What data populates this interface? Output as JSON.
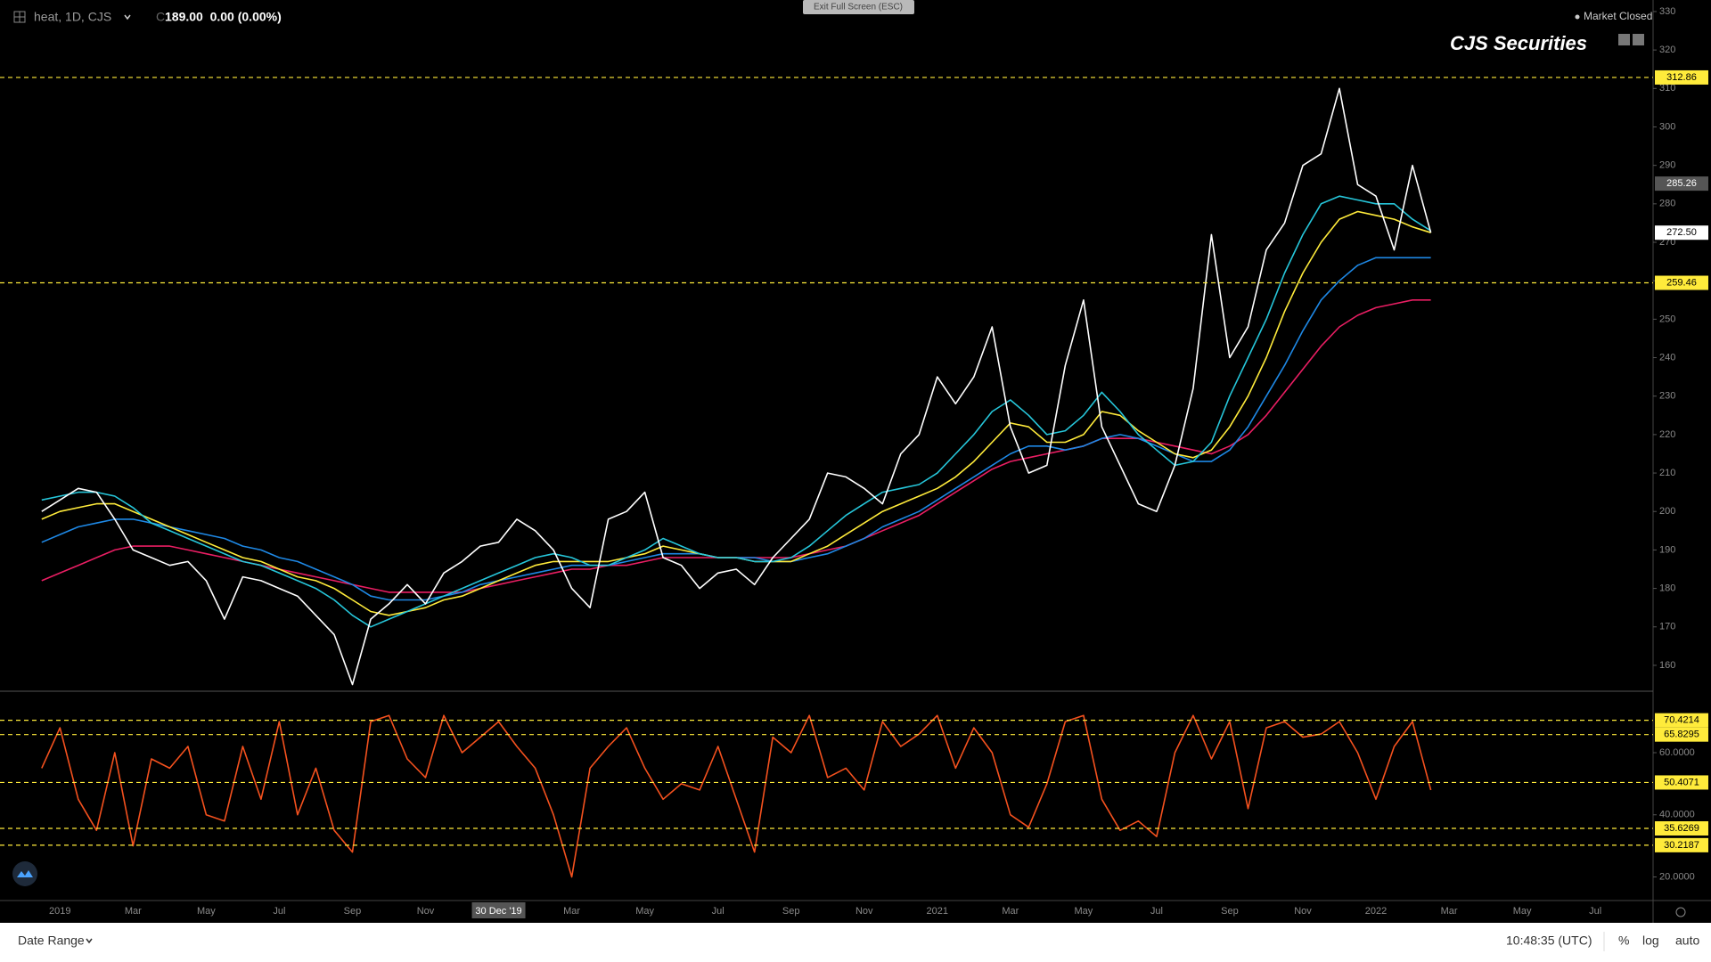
{
  "ui": {
    "symbol": "heat, 1D, CJS",
    "ohlc_prefix": "C",
    "ohlc": "189.00  0.00 (0.00%)",
    "exit_button": "Exit Full Screen (ESC)",
    "status": "Market Closed",
    "date_range": "Date Range",
    "clock": "10:48:35 (UTC)",
    "percent": "%",
    "log": "log",
    "auto": "auto"
  },
  "chart_data": [
    {
      "type": "line",
      "title": "CJS Securities",
      "categories": [
        null,
        "2019",
        null,
        null,
        null,
        "Mar",
        null,
        null,
        null,
        "May",
        null,
        null,
        null,
        "Jul",
        null,
        null,
        null,
        "Sep",
        null,
        null,
        null,
        "Nov",
        null,
        null,
        null,
        "30 Dec '19",
        null,
        null,
        null,
        "Mar",
        null,
        null,
        null,
        "May",
        null,
        null,
        null,
        "Jul",
        null,
        null,
        null,
        "Sep",
        null,
        null,
        null,
        "Nov",
        null,
        null,
        null,
        "2021",
        null,
        null,
        null,
        "Mar",
        null,
        null,
        null,
        "May",
        null,
        null,
        null,
        "Jul",
        null,
        null,
        null,
        "Sep",
        null,
        null,
        null,
        "Nov",
        null,
        null,
        null,
        "2022",
        null,
        null,
        null,
        "Mar",
        null,
        null,
        null,
        "May",
        null,
        null,
        null,
        "Jul",
        null,
        null,
        null
      ],
      "series": [
        {
          "color": "#e91e63",
          "values": [
            182,
            184,
            186,
            188,
            190,
            191,
            191,
            191,
            190,
            189,
            188,
            187,
            186,
            185,
            184,
            183,
            182,
            181,
            180,
            179,
            179,
            179,
            179,
            179,
            180,
            181,
            182,
            183,
            184,
            185,
            185,
            186,
            186,
            187,
            188,
            188,
            188,
            188,
            188,
            188,
            188,
            188,
            189,
            190,
            191,
            193,
            195,
            197,
            199,
            202,
            205,
            208,
            211,
            213,
            214,
            215,
            216,
            217,
            219,
            219,
            219,
            218,
            217,
            216,
            215,
            217,
            220,
            225,
            231,
            237,
            243,
            248,
            251,
            253,
            254,
            255,
            255,
            null,
            null,
            null,
            null,
            null,
            null,
            null,
            null,
            null,
            null,
            null,
            null
          ]
        },
        {
          "color": "#1e88e5",
          "values": [
            192,
            194,
            196,
            197,
            198,
            198,
            197,
            196,
            195,
            194,
            193,
            191,
            190,
            188,
            187,
            185,
            183,
            181,
            178,
            177,
            177,
            177,
            178,
            179,
            181,
            182,
            183,
            184,
            185,
            186,
            186,
            186,
            187,
            188,
            189,
            189,
            189,
            188,
            188,
            188,
            187,
            187,
            188,
            189,
            191,
            193,
            196,
            198,
            200,
            203,
            206,
            209,
            212,
            215,
            217,
            217,
            216,
            217,
            219,
            220,
            219,
            217,
            215,
            213,
            213,
            216,
            222,
            230,
            238,
            247,
            255,
            260,
            264,
            266,
            266,
            266,
            266,
            null,
            null,
            null,
            null,
            null,
            null,
            null,
            null,
            null,
            null,
            null,
            null
          ]
        },
        {
          "color": "#ffeb3b",
          "values": [
            198,
            200,
            201,
            202,
            202,
            200,
            198,
            196,
            194,
            192,
            190,
            188,
            187,
            185,
            183,
            182,
            180,
            177,
            174,
            173,
            174,
            175,
            177,
            178,
            180,
            182,
            184,
            186,
            187,
            187,
            187,
            187,
            188,
            189,
            191,
            190,
            189,
            188,
            188,
            187,
            187,
            187,
            189,
            191,
            194,
            197,
            200,
            202,
            204,
            206,
            209,
            213,
            218,
            223,
            222,
            218,
            218,
            220,
            226,
            225,
            221,
            218,
            215,
            214,
            216,
            222,
            230,
            240,
            252,
            262,
            270,
            276,
            278,
            277,
            276,
            274,
            272.5,
            null,
            null,
            null,
            null,
            null,
            null,
            null,
            null,
            null,
            null,
            null,
            null
          ]
        },
        {
          "color": "#26c6da",
          "values": [
            203,
            204,
            205,
            205,
            204,
            201,
            197,
            195,
            193,
            191,
            189,
            187,
            186,
            184,
            182,
            180,
            177,
            173,
            170,
            172,
            174,
            176,
            178,
            180,
            182,
            184,
            186,
            188,
            189,
            188,
            186,
            186,
            188,
            190,
            193,
            191,
            189,
            188,
            188,
            187,
            187,
            188,
            191,
            195,
            199,
            202,
            205,
            206,
            207,
            210,
            215,
            220,
            226,
            229,
            225,
            220,
            221,
            225,
            231,
            226,
            220,
            216,
            212,
            213,
            218,
            230,
            240,
            250,
            262,
            272,
            280,
            282,
            281,
            280,
            280,
            276,
            273,
            null,
            null,
            null,
            null,
            null,
            null,
            null,
            null,
            null,
            null,
            null,
            null
          ]
        },
        {
          "color": "#ffffff",
          "values": [
            200,
            203,
            206,
            205,
            198,
            190,
            188,
            186,
            187,
            182,
            172,
            183,
            182,
            180,
            178,
            173,
            168,
            155,
            172,
            176,
            181,
            176,
            184,
            187,
            191,
            192,
            198,
            195,
            190,
            180,
            175,
            198,
            200,
            205,
            188,
            186,
            180,
            184,
            185,
            181,
            188,
            193,
            198,
            210,
            209,
            206,
            202,
            215,
            220,
            235,
            228,
            235,
            248,
            222,
            210,
            212,
            238,
            255,
            222,
            212,
            202,
            200,
            212,
            232,
            272,
            240,
            248,
            268,
            275,
            290,
            293,
            310,
            285,
            282,
            268,
            290,
            272.5,
            null,
            null,
            null,
            null,
            null,
            null,
            null,
            null,
            null,
            null,
            null,
            null
          ]
        }
      ],
      "ylim": [
        153.5,
        333
      ],
      "yticks": [
        160,
        170,
        180,
        190,
        200,
        210,
        220,
        230,
        240,
        250,
        260,
        270,
        280,
        290,
        300,
        310,
        320,
        330
      ],
      "levels": [
        {
          "value": 312.86,
          "color": "#ffeb3b",
          "label_color": "#000000",
          "line": true
        },
        {
          "value": 285.26,
          "color": "#555555",
          "label_color": "#ffffff",
          "line": false
        },
        {
          "value": 272.5,
          "label": "272.50",
          "color": "#ffffff",
          "label_color": "#000000",
          "line": false
        },
        {
          "value": 259.46,
          "color": "#ffeb3b",
          "label_color": "#000000",
          "line": true
        }
      ]
    },
    {
      "type": "line",
      "series": [
        {
          "color": "#f4511e",
          "values": [
            55,
            68,
            45,
            35,
            60,
            30,
            58,
            55,
            62,
            40,
            38,
            62,
            45,
            70,
            40,
            55,
            35,
            28,
            70,
            72,
            58,
            52,
            72,
            60,
            65,
            70,
            62,
            55,
            40,
            20,
            55,
            62,
            68,
            55,
            45,
            50,
            48,
            62,
            45,
            28,
            65,
            60,
            72,
            52,
            55,
            48,
            70,
            62,
            66,
            72,
            55,
            68,
            60,
            40,
            36,
            50,
            70,
            72,
            45,
            35,
            38,
            33,
            60,
            72,
            58,
            70,
            42,
            68,
            70,
            65,
            66,
            70,
            60,
            45,
            62,
            70,
            48,
            null,
            null,
            null,
            null,
            null,
            null,
            null,
            null,
            null,
            null,
            null,
            null
          ]
        }
      ],
      "ylim": [
        12.4,
        79.5
      ],
      "yticks": [
        {
          "value": 20,
          "label": "20.0000"
        },
        {
          "value": 40,
          "label": "40.0000"
        },
        {
          "value": 60,
          "label": "60.0000"
        }
      ],
      "levels": [
        {
          "value": 70.4214,
          "color": "#ffeb3b",
          "label_color": "#000000",
          "line": true
        },
        {
          "value": 65.8295,
          "color": "#ffeb3b",
          "label_color": "#000000",
          "line": true
        },
        {
          "value": 50.4071,
          "color": "#ffeb3b",
          "label_color": "#000000",
          "line": true
        },
        {
          "value": 35.6269,
          "color": "#ffeb3b",
          "label_color": "#000000",
          "line": true
        },
        {
          "value": 30.2187,
          "color": "#ffeb3b",
          "label_color": "#000000",
          "line": true
        }
      ]
    }
  ]
}
